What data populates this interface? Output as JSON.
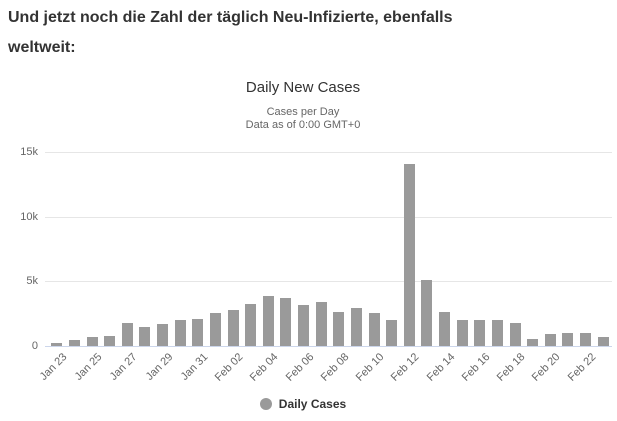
{
  "headline": {
    "line1": "Und jetzt noch die Zahl der täglich Neu-Infizierte, ebenfalls",
    "line2": "weltweit:"
  },
  "chart": {
    "title": "Daily New Cases",
    "subtitle1": "Cases per Day",
    "subtitle2": "Data as of 0:00 GMT+0",
    "legend": {
      "label": "Daily Cases"
    },
    "colors": {
      "bar": "#9a9a9a",
      "gridline": "#e6e6e6",
      "axis_line": "#ccd6eb",
      "tick_label": "#666666",
      "title": "#333333",
      "subtitle": "#666666",
      "legend_text": "#333333",
      "headline_text": "#333333"
    }
  },
  "chart_data": {
    "type": "bar",
    "title": "Daily New Cases",
    "subtitle": [
      "Cases per Day",
      "Data as of 0:00 GMT+0"
    ],
    "xlabel": "",
    "ylabel": "",
    "categories": [
      "Jan 23",
      "Jan 24",
      "Jan 25",
      "Jan 26",
      "Jan 27",
      "Jan 28",
      "Jan 29",
      "Jan 30",
      "Jan 31",
      "Feb 01",
      "Feb 02",
      "Feb 03",
      "Feb 04",
      "Feb 05",
      "Feb 06",
      "Feb 07",
      "Feb 08",
      "Feb 09",
      "Feb 10",
      "Feb 11",
      "Feb 12",
      "Feb 13",
      "Feb 14",
      "Feb 15",
      "Feb 16",
      "Feb 17",
      "Feb 18",
      "Feb 19",
      "Feb 20",
      "Feb 21",
      "Feb 22",
      "Feb 23"
    ],
    "values": [
      259,
      457,
      688,
      769,
      1771,
      1459,
      1737,
      1981,
      2099,
      2589,
      2825,
      3233,
      3892,
      3697,
      3143,
      3385,
      2652,
      2973,
      2560,
      2022,
      14108,
      5090,
      2641,
      2008,
      2051,
      2000,
      1752,
      520,
      950,
      980,
      984,
      700
    ],
    "x_ticks_shown": [
      "Jan 23",
      "Jan 25",
      "Jan 27",
      "Jan 29",
      "Jan 31",
      "Feb 02",
      "Feb 04",
      "Feb 06",
      "Feb 08",
      "Feb 10",
      "Feb 12",
      "Feb 14",
      "Feb 16",
      "Feb 18",
      "Feb 20",
      "Feb 22"
    ],
    "y_ticks": [
      {
        "label": "0",
        "value": 0
      },
      {
        "label": "5k",
        "value": 5000
      },
      {
        "label": "10k",
        "value": 10000
      },
      {
        "label": "15k",
        "value": 15000
      }
    ],
    "ylim": [
      0,
      15500
    ],
    "grid": true,
    "legend": [
      "Daily Cases"
    ],
    "legend_position": "bottom-center",
    "series_color": "#9a9a9a"
  }
}
